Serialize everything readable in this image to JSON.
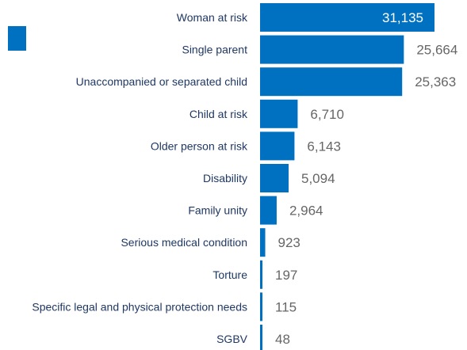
{
  "chart_data": {
    "type": "bar",
    "orientation": "horizontal",
    "categories": [
      "Woman at risk",
      "Single parent",
      "Unaccompanied or separated child",
      "Child at risk",
      "Older person at risk",
      "Disability",
      "Family unity",
      "Serious medical condition",
      "Torture",
      "Specific legal and physical protection needs",
      "SGBV"
    ],
    "values": [
      31135,
      25664,
      25363,
      6710,
      6143,
      5094,
      2964,
      923,
      197,
      115,
      48
    ],
    "value_labels": [
      "31,135",
      "25,664",
      "25,363",
      "6,710",
      "6,143",
      "5,094",
      "2,964",
      "923",
      "197",
      "115",
      "48"
    ],
    "xlim": [
      0,
      31135
    ],
    "grid": false,
    "legend": "none",
    "bar_color": "#0070c0"
  }
}
